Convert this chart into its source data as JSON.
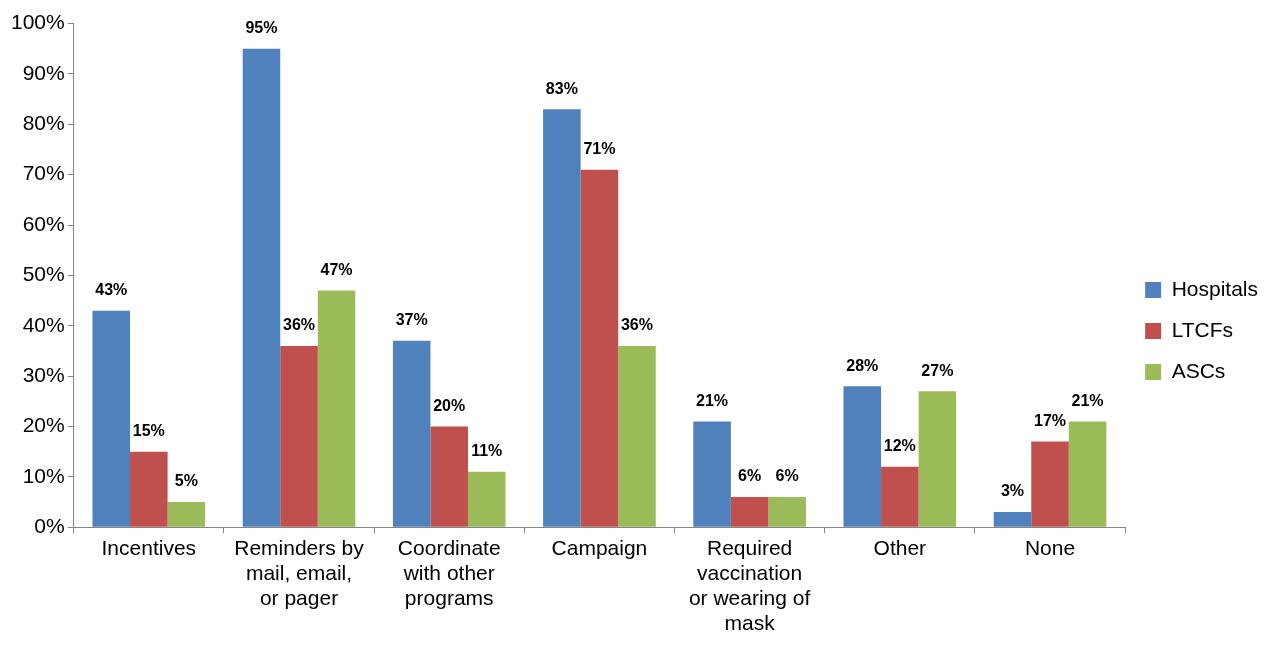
{
  "chart_data": {
    "type": "bar",
    "categories": [
      "Incentives",
      "Reminders by mail, email, or pager",
      "Coordinate with other programs",
      "Campaign",
      "Required vaccination or wearing of mask",
      "Other",
      "None"
    ],
    "series": [
      {
        "name": "Hospitals",
        "color": "#4f81bd",
        "values": [
          43,
          95,
          37,
          83,
          21,
          28,
          3
        ],
        "value_labels": [
          "43%",
          "95%",
          "37%",
          "83%",
          "21%",
          "28%",
          "3%"
        ]
      },
      {
        "name": "LTCFs",
        "color": "#c0504d",
        "values": [
          15,
          36,
          20,
          71,
          6,
          12,
          17
        ],
        "value_labels": [
          "15%",
          "36%",
          "20%",
          "71%",
          "6%",
          "12%",
          "17%"
        ]
      },
      {
        "name": "ASCs",
        "color": "#9bbb59",
        "values": [
          5,
          47,
          11,
          36,
          6,
          27,
          21
        ],
        "value_labels": [
          "5%",
          "47%",
          "11%",
          "36%",
          "6%",
          "27%",
          "21%"
        ]
      }
    ],
    "ylim": [
      0,
      100
    ],
    "yticks": [
      {
        "value": 0,
        "label": "0%"
      },
      {
        "value": 10,
        "label": "10%"
      },
      {
        "value": 20,
        "label": "20%"
      },
      {
        "value": 30,
        "label": "30%"
      },
      {
        "value": 40,
        "label": "40%"
      },
      {
        "value": 50,
        "label": "50%"
      },
      {
        "value": 60,
        "label": "60%"
      },
      {
        "value": 70,
        "label": "70%"
      },
      {
        "value": 80,
        "label": "80%"
      },
      {
        "value": 90,
        "label": "90%"
      },
      {
        "value": 100,
        "label": "100%"
      }
    ],
    "grid": false,
    "legend": "right"
  }
}
